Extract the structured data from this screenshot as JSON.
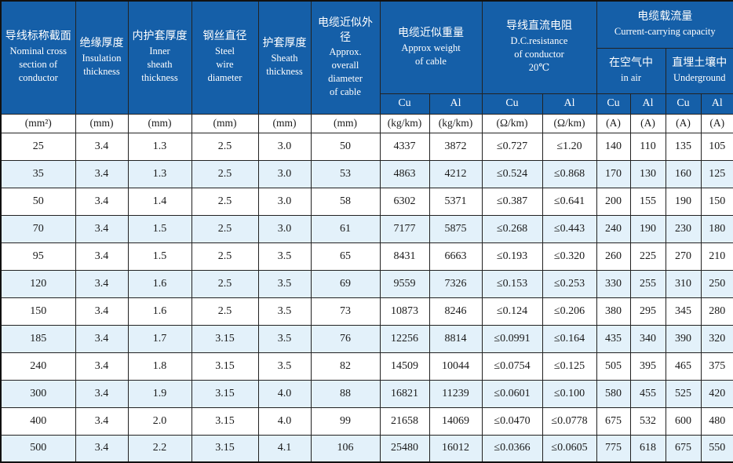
{
  "colors": {
    "header_bg": "#155fa8",
    "header_text": "#ffffff",
    "alt_row_bg": "#e3f1fa",
    "grid_border": "#222222"
  },
  "table": {
    "columns": [
      {
        "zh": "导线标称截面",
        "en": "Nominal  cross\nsection of\nconductor",
        "unit": "(mm²)"
      },
      {
        "zh": "绝缘厚度",
        "en": "Insulation\nthickness",
        "unit": "(mm)"
      },
      {
        "zh": "内护套厚度",
        "en": "Inner\nsheath\nthickness",
        "unit": "(mm)"
      },
      {
        "zh": "钢丝直径",
        "en": "Steel\nwire\ndiameter",
        "unit": "(mm)"
      },
      {
        "zh": "护套厚度",
        "en": "Sheath\nthickness",
        "unit": "(mm)"
      },
      {
        "zh": "电缆近似外径",
        "en": "Approx.\noverall\ndiameter\nof cable",
        "unit": "(mm)"
      }
    ],
    "weight_group": {
      "zh": "电缆近似重量",
      "en": "Approx weight\nof cable"
    },
    "resistance_group": {
      "zh": "导线直流电阻",
      "en": "D.C.resistance\nof conductor\n20℃"
    },
    "capacity_group": {
      "zh": "电缆载流量",
      "en": "Current-carrying capacity",
      "in_air": {
        "zh": "在空气中",
        "en": "in air"
      },
      "underground": {
        "zh": "直埋土壤中",
        "en": "Underground"
      }
    },
    "cu_al": [
      "Cu",
      "Al",
      "Cu",
      "Al",
      "Cu",
      "Al",
      "Cu",
      "Al"
    ],
    "units": [
      "(mm²)",
      "(mm)",
      "(mm)",
      "(mm)",
      "(mm)",
      "(mm)",
      "(kg/km)",
      "(kg/km)",
      "(Ω/km)",
      "(Ω/km)",
      "(A)",
      "(A)",
      "(A)",
      "(A)"
    ],
    "rows": [
      [
        "25",
        "3.4",
        "1.3",
        "2.5",
        "3.0",
        "50",
        "4337",
        "3872",
        "≤0.727",
        "≤1.20",
        "140",
        "110",
        "135",
        "105"
      ],
      [
        "35",
        "3.4",
        "1.3",
        "2.5",
        "3.0",
        "53",
        "4863",
        "4212",
        "≤0.524",
        "≤0.868",
        "170",
        "130",
        "160",
        "125"
      ],
      [
        "50",
        "3.4",
        "1.4",
        "2.5",
        "3.0",
        "58",
        "6302",
        "5371",
        "≤0.387",
        "≤0.641",
        "200",
        "155",
        "190",
        "150"
      ],
      [
        "70",
        "3.4",
        "1.5",
        "2.5",
        "3.0",
        "61",
        "7177",
        "5875",
        "≤0.268",
        "≤0.443",
        "240",
        "190",
        "230",
        "180"
      ],
      [
        "95",
        "3.4",
        "1.5",
        "2.5",
        "3.5",
        "65",
        "8431",
        "6663",
        "≤0.193",
        "≤0.320",
        "260",
        "225",
        "270",
        "210"
      ],
      [
        "120",
        "3.4",
        "1.6",
        "2.5",
        "3.5",
        "69",
        "9559",
        "7326",
        "≤0.153",
        "≤0.253",
        "330",
        "255",
        "310",
        "250"
      ],
      [
        "150",
        "3.4",
        "1.6",
        "2.5",
        "3.5",
        "73",
        "10873",
        "8246",
        "≤0.124",
        "≤0.206",
        "380",
        "295",
        "345",
        "280"
      ],
      [
        "185",
        "3.4",
        "1.7",
        "3.15",
        "3.5",
        "76",
        "12256",
        "8814",
        "≤0.0991",
        "≤0.164",
        "435",
        "340",
        "390",
        "320"
      ],
      [
        "240",
        "3.4",
        "1.8",
        "3.15",
        "3.5",
        "82",
        "14509",
        "10044",
        "≤0.0754",
        "≤0.125",
        "505",
        "395",
        "465",
        "375"
      ],
      [
        "300",
        "3.4",
        "1.9",
        "3.15",
        "4.0",
        "88",
        "16821",
        "11239",
        "≤0.0601",
        "≤0.100",
        "580",
        "455",
        "525",
        "420"
      ],
      [
        "400",
        "3.4",
        "2.0",
        "3.15",
        "4.0",
        "99",
        "21658",
        "14069",
        "≤0.0470",
        "≤0.0778",
        "675",
        "532",
        "600",
        "480"
      ],
      [
        "500",
        "3.4",
        "2.2",
        "3.15",
        "4.1",
        "106",
        "25480",
        "16012",
        "≤0.0366",
        "≤0.0605",
        "775",
        "618",
        "675",
        "550"
      ]
    ]
  }
}
